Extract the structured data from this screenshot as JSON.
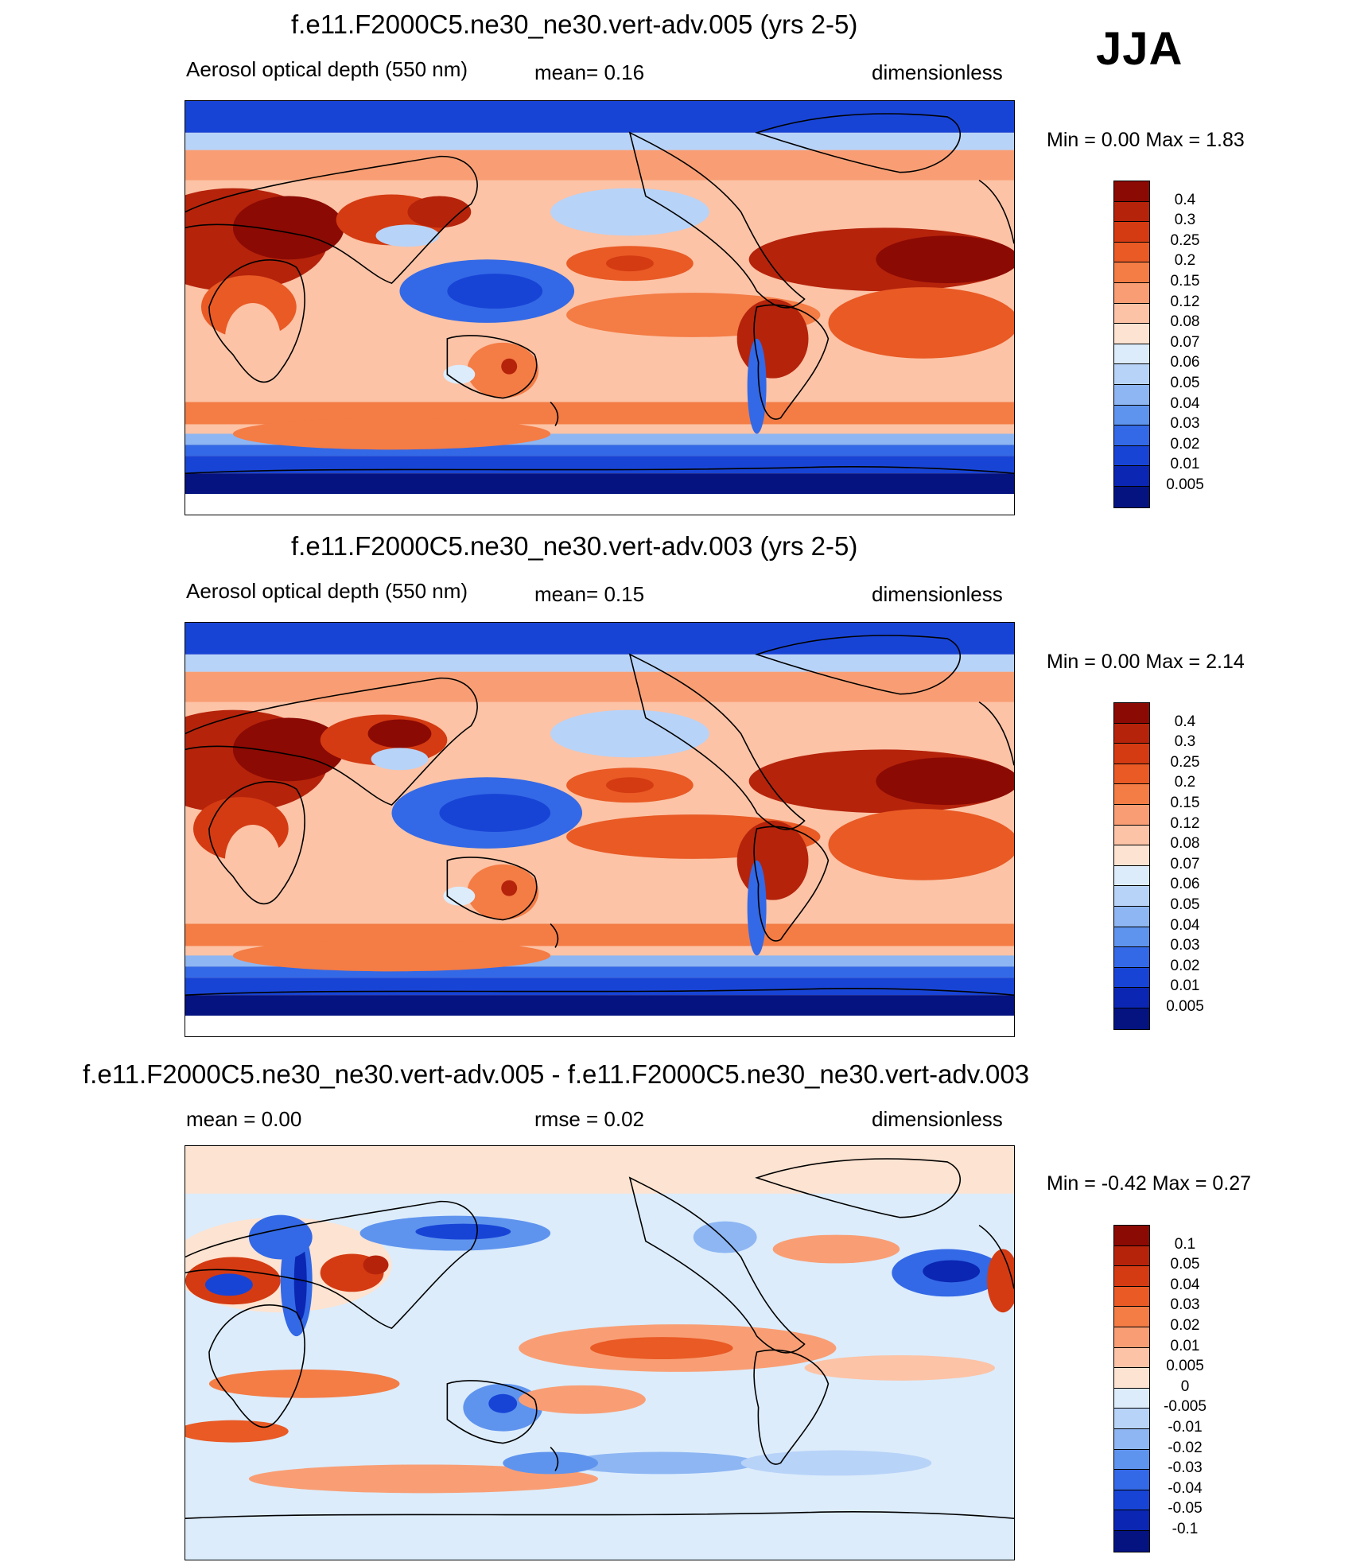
{
  "season": "JJA",
  "panels": [
    {
      "title": "f.e11.F2000C5.ne30_ne30.vert-adv.005 (yrs 2-5)",
      "left_label": "Aerosol optical depth (550 nm)",
      "center_label": "mean=   0.16",
      "right_label": "dimensionless",
      "minmax": "Min =    0.00 Max =    1.83",
      "colorbar": {
        "labels": [
          "0.4",
          "0.3",
          "0.25",
          "0.2",
          "0.15",
          "0.12",
          "0.08",
          "0.07",
          "0.06",
          "0.05",
          "0.04",
          "0.03",
          "0.02",
          "0.01",
          "0.005"
        ],
        "colors": [
          "#8b0a04",
          "#b5230b",
          "#d43b12",
          "#e95a25",
          "#f47c45",
          "#f99e74",
          "#fcc3a6",
          "#fde3d1",
          "#dcecfb",
          "#b8d3f8",
          "#8db6f3",
          "#5f94ee",
          "#3369e6",
          "#1844d6",
          "#0a26b2",
          "#041380"
        ]
      }
    },
    {
      "title": "f.e11.F2000C5.ne30_ne30.vert-adv.003 (yrs 2-5)",
      "left_label": "Aerosol optical depth (550 nm)",
      "center_label": "mean=   0.15",
      "right_label": "dimensionless",
      "minmax": "Min =    0.00 Max =    2.14",
      "colorbar": {
        "labels": [
          "0.4",
          "0.3",
          "0.25",
          "0.2",
          "0.15",
          "0.12",
          "0.08",
          "0.07",
          "0.06",
          "0.05",
          "0.04",
          "0.03",
          "0.02",
          "0.01",
          "0.005"
        ],
        "colors": [
          "#8b0a04",
          "#b5230b",
          "#d43b12",
          "#e95a25",
          "#f47c45",
          "#f99e74",
          "#fcc3a6",
          "#fde3d1",
          "#dcecfb",
          "#b8d3f8",
          "#8db6f3",
          "#5f94ee",
          "#3369e6",
          "#1844d6",
          "#0a26b2",
          "#041380"
        ]
      }
    },
    {
      "title": "f.e11.F2000C5.ne30_ne30.vert-adv.005 - f.e11.F2000C5.ne30_ne30.vert-adv.003",
      "left_label": "mean =    0.00",
      "center_label": "rmse =    0.02",
      "right_label": "dimensionless",
      "minmax": "Min =  -0.42 Max =    0.27",
      "colorbar": {
        "labels": [
          "0.1",
          "0.05",
          "0.04",
          "0.03",
          "0.02",
          "0.01",
          "0.005",
          "0",
          "-0.005",
          "-0.01",
          "-0.02",
          "-0.03",
          "-0.04",
          "-0.05",
          "-0.1"
        ],
        "colors": [
          "#8b0a04",
          "#b5230b",
          "#d43b12",
          "#e95a25",
          "#f47c45",
          "#f99e74",
          "#fcc3a6",
          "#fde3d1",
          "#dcecfb",
          "#b8d3f8",
          "#8db6f3",
          "#5f94ee",
          "#3369e6",
          "#1844d6",
          "#0a26b2",
          "#041380"
        ]
      }
    }
  ]
}
